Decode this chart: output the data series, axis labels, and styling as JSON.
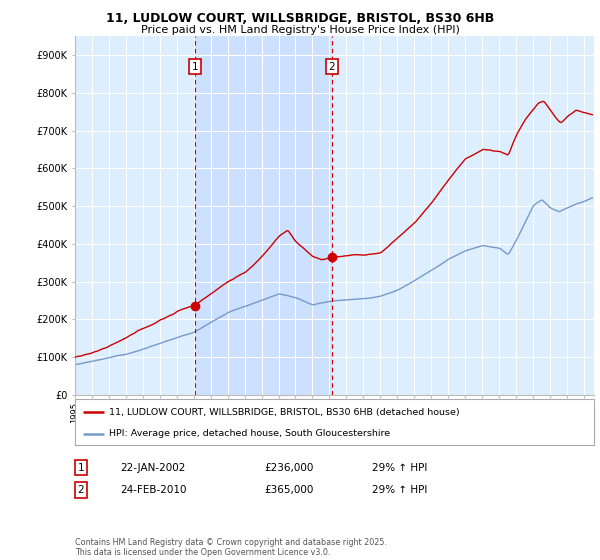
{
  "title_line1": "11, LUDLOW COURT, WILLSBRIDGE, BRISTOL, BS30 6HB",
  "title_line2": "Price paid vs. HM Land Registry's House Price Index (HPI)",
  "ylim": [
    0,
    950000
  ],
  "yticks": [
    0,
    100000,
    200000,
    300000,
    400000,
    500000,
    600000,
    700000,
    800000,
    900000
  ],
  "ytick_labels": [
    "£0",
    "£100K",
    "£200K",
    "£300K",
    "£400K",
    "£500K",
    "£600K",
    "£700K",
    "£800K",
    "£900K"
  ],
  "xlim_start": 1995.0,
  "xlim_end": 2025.6,
  "background_color": "#ffffff",
  "plot_bg_color": "#ddeeff",
  "highlight_color": "#cce0ff",
  "grid_color": "#ffffff",
  "red_color": "#cc0000",
  "blue_color": "#7799cc",
  "sale1_x": 2002.06,
  "sale1_y": 236000,
  "sale2_x": 2010.15,
  "sale2_y": 365000,
  "legend_label_red": "11, LUDLOW COURT, WILLSBRIDGE, BRISTOL, BS30 6HB (detached house)",
  "legend_label_blue": "HPI: Average price, detached house, South Gloucestershire",
  "annotation1_label": "1",
  "annotation1_date": "22-JAN-2002",
  "annotation1_price": "£236,000",
  "annotation1_hpi": "29% ↑ HPI",
  "annotation2_label": "2",
  "annotation2_date": "24-FEB-2010",
  "annotation2_price": "£365,000",
  "annotation2_hpi": "29% ↑ HPI",
  "footer": "Contains HM Land Registry data © Crown copyright and database right 2025.\nThis data is licensed under the Open Government Licence v3.0."
}
